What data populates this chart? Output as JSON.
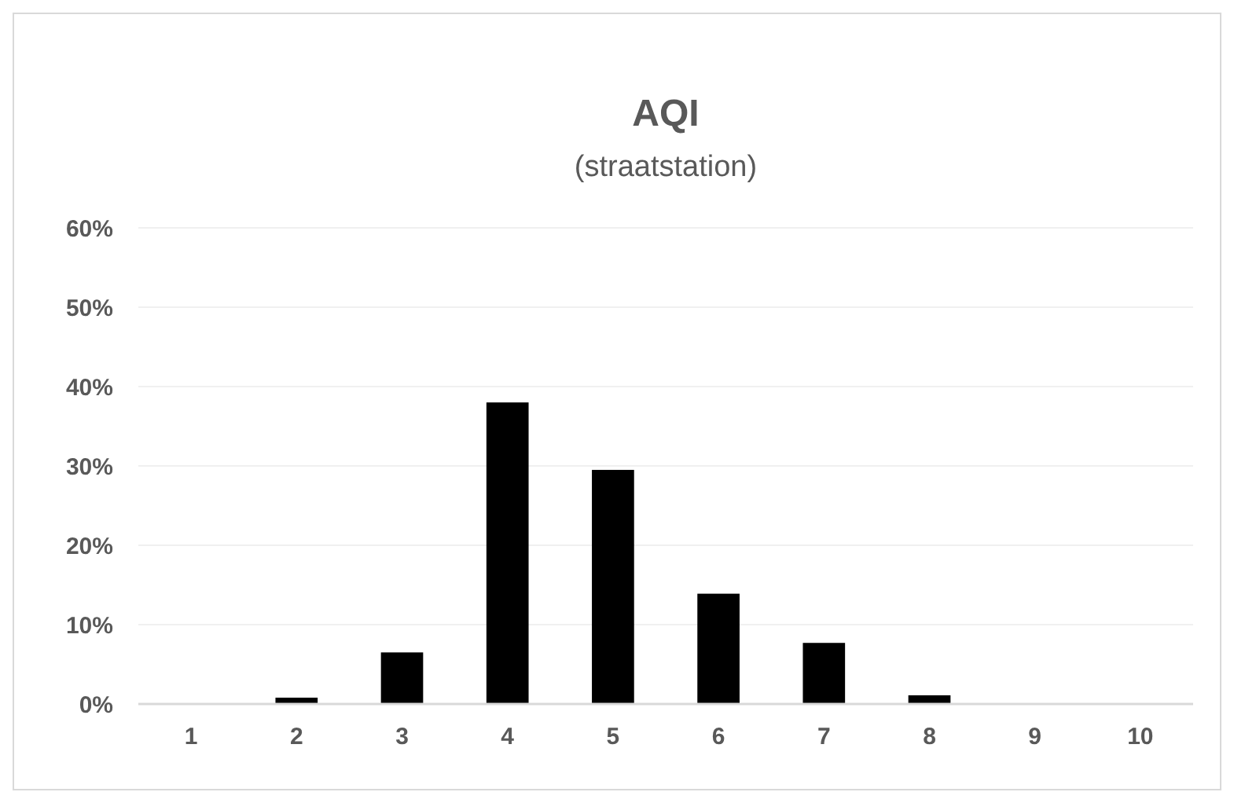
{
  "chart_data": {
    "type": "bar",
    "title": "AQI",
    "subtitle": "(straatstation)",
    "categories": [
      "1",
      "2",
      "3",
      "4",
      "5",
      "6",
      "7",
      "8",
      "9",
      "10"
    ],
    "values": [
      0,
      0.8,
      6.5,
      38,
      29.5,
      13.9,
      7.7,
      1.1,
      0,
      0
    ],
    "color": "#000000",
    "ylim": [
      0,
      60
    ],
    "yticks": [
      {
        "value": 0,
        "label": "0%"
      },
      {
        "value": 10,
        "label": "10%"
      },
      {
        "value": 20,
        "label": "20%"
      },
      {
        "value": 30,
        "label": "30%"
      },
      {
        "value": 40,
        "label": "40%"
      },
      {
        "value": 50,
        "label": "50%"
      },
      {
        "value": 60,
        "label": "60%"
      }
    ],
    "grid": true
  }
}
